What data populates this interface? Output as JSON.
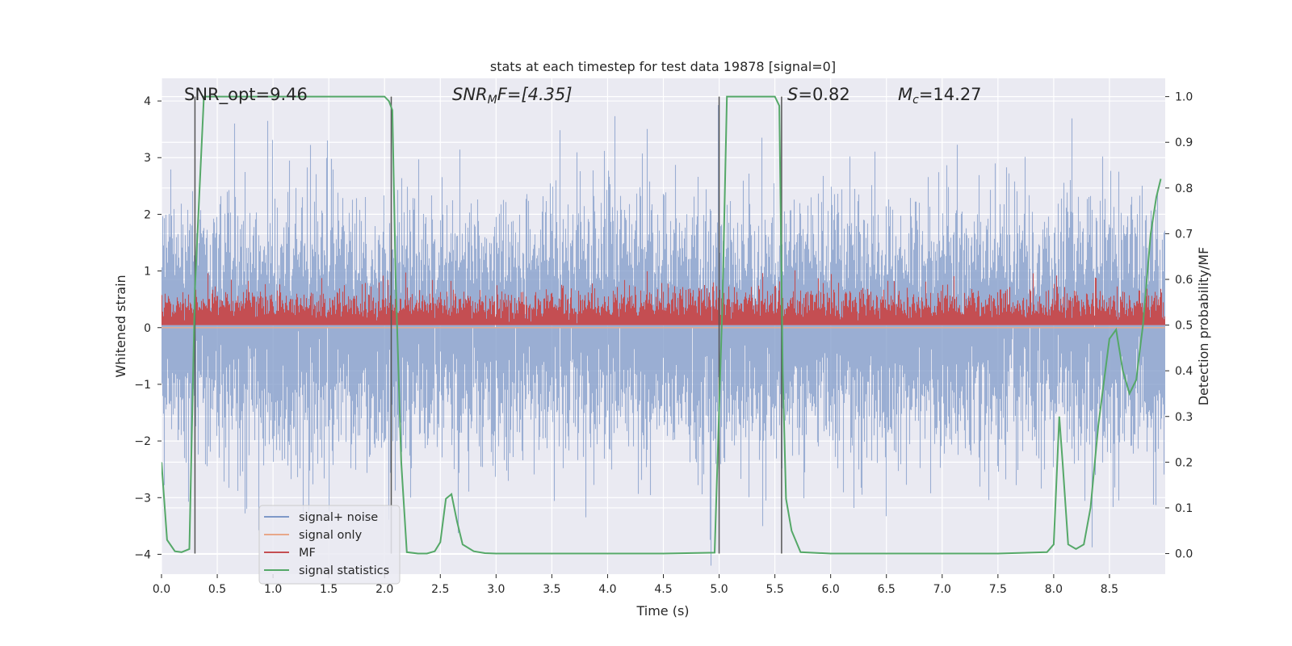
{
  "chart_data": {
    "type": "line",
    "title": "stats at each timestep for test data 19878 [signal=0]",
    "xlabel": "Time (s)",
    "ylabel": "Whitened strain",
    "y2label": "Detection probability/MF",
    "xlim": [
      0.0,
      9.0
    ],
    "ylim": [
      -4.35,
      4.4
    ],
    "y2lim": [
      -0.045,
      1.04
    ],
    "x_ticks": [
      0.0,
      0.5,
      1.0,
      1.5,
      2.0,
      2.5,
      3.0,
      3.5,
      4.0,
      4.5,
      5.0,
      5.5,
      6.0,
      6.5,
      7.0,
      7.5,
      8.0,
      8.5
    ],
    "x_tick_labels": [
      "0.0",
      "0.5",
      "1.0",
      "1.5",
      "2.0",
      "2.5",
      "3.0",
      "3.5",
      "4.0",
      "4.5",
      "5.0",
      "5.5",
      "6.0",
      "6.5",
      "7.0",
      "7.5",
      "8.0",
      "8.5"
    ],
    "y_ticks": [
      -4,
      -3,
      -2,
      -1,
      0,
      1,
      2,
      3,
      4
    ],
    "y_tick_labels": [
      "−4",
      "−3",
      "−2",
      "−1",
      "0",
      "1",
      "2",
      "3",
      "4"
    ],
    "y2_ticks": [
      0.0,
      0.1,
      0.2,
      0.3,
      0.4,
      0.5,
      0.6,
      0.7,
      0.8,
      0.9,
      1.0
    ],
    "y2_tick_labels": [
      "0.0",
      "0.1",
      "0.2",
      "0.3",
      "0.4",
      "0.5",
      "0.6",
      "0.7",
      "0.8",
      "0.9",
      "1.0"
    ],
    "grid": true,
    "legend_position": "lower-left",
    "legend": [
      "signal+ noise",
      "signal only",
      "MF",
      "signal statistics"
    ],
    "annotations": {
      "snr_opt": "SNR_opt=9.46",
      "snr_mf_prefix": "SNR",
      "snr_mf_sub": "M",
      "snr_mf_suffix": "F=[4.35]",
      "s_prefix": "S",
      "s_value": "=0.82",
      "mc_prefix": "M",
      "mc_sub": "c",
      "mc_value": "=14.27"
    },
    "vlines_x": [
      0.3,
      2.06,
      5.0,
      5.56
    ],
    "series": [
      {
        "name": "signal+ noise",
        "axis": "left",
        "color": "#7f99c8",
        "noise_sigma": 1.0,
        "sample_rate": 2048,
        "x_range": [
          0.0,
          9.0
        ]
      },
      {
        "name": "signal only",
        "axis": "left",
        "color": "#e8a88a",
        "values_zero": true
      },
      {
        "name": "MF",
        "axis": "right",
        "color": "#c44e52",
        "baseline": 0.5,
        "typical_peak": 0.56,
        "max_peak": 0.62,
        "x_range": [
          0.0,
          9.0
        ]
      },
      {
        "name": "signal statistics",
        "axis": "right",
        "color": "#55a868",
        "x": [
          0.0,
          0.05,
          0.12,
          0.18,
          0.25,
          0.3,
          0.38,
          0.45,
          1.0,
          1.5,
          2.0,
          2.04,
          2.07,
          2.1,
          2.15,
          2.2,
          2.3,
          2.38,
          2.45,
          2.5,
          2.55,
          2.6,
          2.65,
          2.7,
          2.8,
          2.9,
          3.0,
          3.5,
          4.0,
          4.5,
          4.96,
          5.03,
          5.07,
          5.5,
          5.54,
          5.57,
          5.6,
          5.65,
          5.73,
          6.0,
          7.0,
          7.5,
          7.94,
          8.0,
          8.05,
          8.08,
          8.13,
          8.2,
          8.27,
          8.33,
          8.4,
          8.5,
          8.56,
          8.62,
          8.68,
          8.74,
          8.8,
          8.87,
          8.92,
          8.96
        ],
        "y": [
          0.2,
          0.03,
          0.005,
          0.003,
          0.01,
          0.58,
          1.0,
          1.0,
          1.0,
          1.0,
          1.0,
          0.99,
          0.97,
          0.6,
          0.2,
          0.003,
          0.0,
          0.0,
          0.005,
          0.025,
          0.12,
          0.13,
          0.07,
          0.02,
          0.005,
          0.001,
          0.0,
          0.0,
          0.0,
          0.0,
          0.002,
          0.55,
          1.0,
          1.0,
          0.98,
          0.4,
          0.12,
          0.05,
          0.003,
          0.0,
          0.0,
          0.0,
          0.003,
          0.02,
          0.3,
          0.2,
          0.02,
          0.01,
          0.02,
          0.1,
          0.28,
          0.47,
          0.49,
          0.4,
          0.35,
          0.38,
          0.5,
          0.7,
          0.78,
          0.82
        ]
      }
    ]
  }
}
